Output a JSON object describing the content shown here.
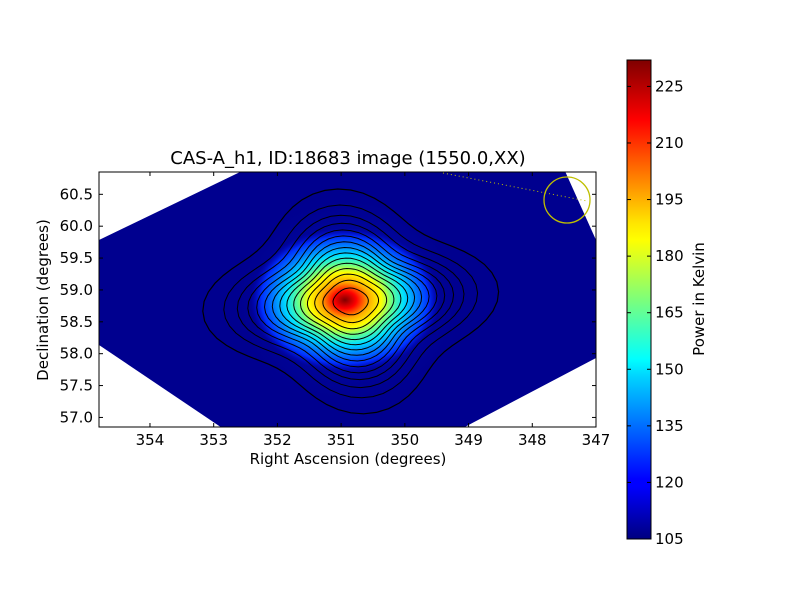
{
  "chart_data": {
    "type": "heatmap",
    "title": "CAS-A_h1, ID:18683 image (1550.0,XX)",
    "xlabel": "Right Ascension (degrees)",
    "ylabel": "Declination (degrees)",
    "xlim": [
      354.8,
      347.0
    ],
    "ylim": [
      56.85,
      60.85
    ],
    "x_ticks": [
      "354",
      "353",
      "352",
      "351",
      "350",
      "349",
      "348",
      "347"
    ],
    "x_tick_values": [
      354,
      353,
      352,
      351,
      350,
      349,
      348,
      347
    ],
    "y_ticks": [
      "57.0",
      "57.5",
      "58.0",
      "58.5",
      "59.0",
      "59.5",
      "60.0",
      "60.5"
    ],
    "y_tick_values": [
      57.0,
      57.5,
      58.0,
      58.5,
      59.0,
      59.5,
      60.0,
      60.5
    ],
    "colormap": "jet",
    "source": {
      "ra": 350.85,
      "dec": 58.82,
      "peak": 230
    },
    "background_level": 105,
    "beam_circle": {
      "ra": 347.5,
      "dec": 60.38,
      "color": "#bfbf00"
    },
    "colorbar": {
      "label": "Power in Kelvin",
      "min": 105,
      "max": 232,
      "ticks": [
        "105",
        "120",
        "135",
        "150",
        "165",
        "180",
        "195",
        "210",
        "225"
      ],
      "tick_values": [
        105,
        120,
        135,
        150,
        165,
        180,
        195,
        210,
        225
      ]
    },
    "contour_levels": [
      112,
      120,
      128,
      136,
      144,
      152,
      160,
      168,
      176,
      184,
      192,
      200,
      208,
      216,
      224
    ],
    "grid": false
  }
}
